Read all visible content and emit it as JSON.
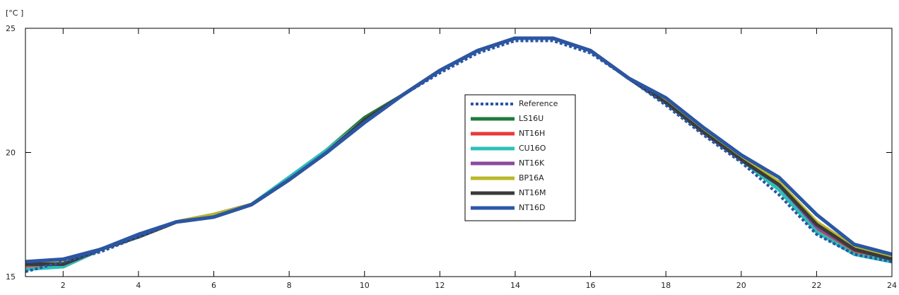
{
  "chart_data": {
    "type": "line",
    "unit_label": "[°C ]",
    "xlim": [
      1,
      24
    ],
    "ylim": [
      15,
      25
    ],
    "x_ticks": [
      2,
      4,
      6,
      8,
      10,
      12,
      14,
      16,
      18,
      20,
      22,
      24
    ],
    "y_ticks": [
      15,
      20,
      25
    ],
    "grid": false,
    "legend_position": "center",
    "x": [
      1,
      2,
      3,
      4,
      5,
      6,
      7,
      8,
      9,
      10,
      11,
      12,
      13,
      14,
      15,
      16,
      17,
      18,
      19,
      20,
      21,
      22,
      23,
      24
    ],
    "series": [
      {
        "name": "Reference",
        "color": "#2a56a4",
        "dashed": true,
        "values": [
          15.2,
          15.6,
          16.0,
          16.6,
          17.2,
          17.4,
          17.9,
          18.9,
          20.0,
          21.2,
          22.3,
          23.2,
          24.0,
          24.5,
          24.5,
          24.0,
          23.0,
          21.9,
          20.7,
          19.6,
          18.3,
          16.7,
          15.9,
          15.6
        ]
      },
      {
        "name": "LS16U",
        "color": "#1e7b3a",
        "dashed": false,
        "values": [
          15.4,
          15.4,
          16.1,
          16.6,
          17.2,
          17.5,
          17.9,
          18.9,
          20.1,
          21.4,
          22.3,
          23.3,
          24.1,
          24.6,
          24.6,
          24.1,
          23.0,
          22.0,
          20.8,
          19.7,
          18.6,
          16.9,
          16.0,
          15.7
        ]
      },
      {
        "name": "NT16H",
        "color": "#e83a3a",
        "dashed": false,
        "values": [
          15.4,
          15.4,
          16.1,
          16.6,
          17.2,
          17.5,
          17.9,
          18.9,
          20.1,
          21.3,
          22.3,
          23.3,
          24.1,
          24.6,
          24.6,
          24.1,
          23.0,
          22.0,
          20.8,
          19.7,
          18.6,
          16.9,
          16.0,
          15.7
        ]
      },
      {
        "name": "CU16O",
        "color": "#2bc0b8",
        "dashed": false,
        "values": [
          15.3,
          15.4,
          16.1,
          16.6,
          17.2,
          17.5,
          17.9,
          19.0,
          20.1,
          21.3,
          22.3,
          23.3,
          24.1,
          24.6,
          24.6,
          24.1,
          23.0,
          22.0,
          20.8,
          19.7,
          18.5,
          16.8,
          15.9,
          15.6
        ]
      },
      {
        "name": "NT16K",
        "color": "#8c4a9c",
        "dashed": false,
        "values": [
          15.5,
          15.5,
          16.1,
          16.6,
          17.2,
          17.5,
          17.9,
          18.9,
          20.0,
          21.3,
          22.3,
          23.3,
          24.1,
          24.6,
          24.6,
          24.1,
          23.0,
          22.0,
          20.8,
          19.7,
          18.7,
          17.0,
          16.1,
          15.7
        ]
      },
      {
        "name": "BP16A",
        "color": "#b8b82a",
        "dashed": false,
        "values": [
          15.5,
          15.6,
          16.1,
          16.6,
          17.2,
          17.5,
          17.9,
          18.9,
          20.0,
          21.3,
          22.3,
          23.3,
          24.1,
          24.6,
          24.6,
          24.1,
          23.0,
          22.1,
          20.9,
          19.8,
          18.8,
          17.2,
          16.2,
          15.8
        ]
      },
      {
        "name": "NT16M",
        "color": "#3a3a3a",
        "dashed": false,
        "values": [
          15.5,
          15.5,
          16.1,
          16.6,
          17.2,
          17.4,
          17.9,
          18.9,
          20.0,
          21.3,
          22.3,
          23.3,
          24.1,
          24.6,
          24.6,
          24.1,
          23.0,
          22.0,
          20.8,
          19.7,
          18.7,
          17.1,
          16.1,
          15.7
        ]
      },
      {
        "name": "NT16D",
        "color": "#2a56a4",
        "dashed": false,
        "values": [
          15.6,
          15.7,
          16.1,
          16.7,
          17.2,
          17.4,
          17.9,
          18.9,
          20.0,
          21.2,
          22.3,
          23.3,
          24.1,
          24.6,
          24.6,
          24.1,
          23.0,
          22.2,
          21.0,
          19.9,
          19.0,
          17.5,
          16.3,
          15.9
        ]
      }
    ]
  }
}
